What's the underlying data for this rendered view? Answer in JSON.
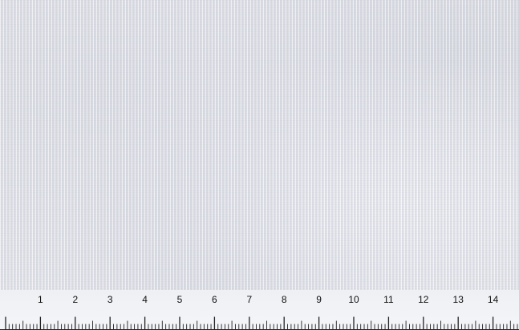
{
  "photo": {
    "subject": "fabric-swatch",
    "fabric_color": "#e2e3e9"
  },
  "ruler": {
    "unit_start": 0,
    "unit_end": 14.9,
    "minor_divisions_per_unit": 10,
    "labels": [
      "1",
      "2",
      "3",
      "4",
      "5",
      "6",
      "7",
      "8",
      "9",
      "10",
      "11",
      "12",
      "13",
      "14"
    ]
  }
}
